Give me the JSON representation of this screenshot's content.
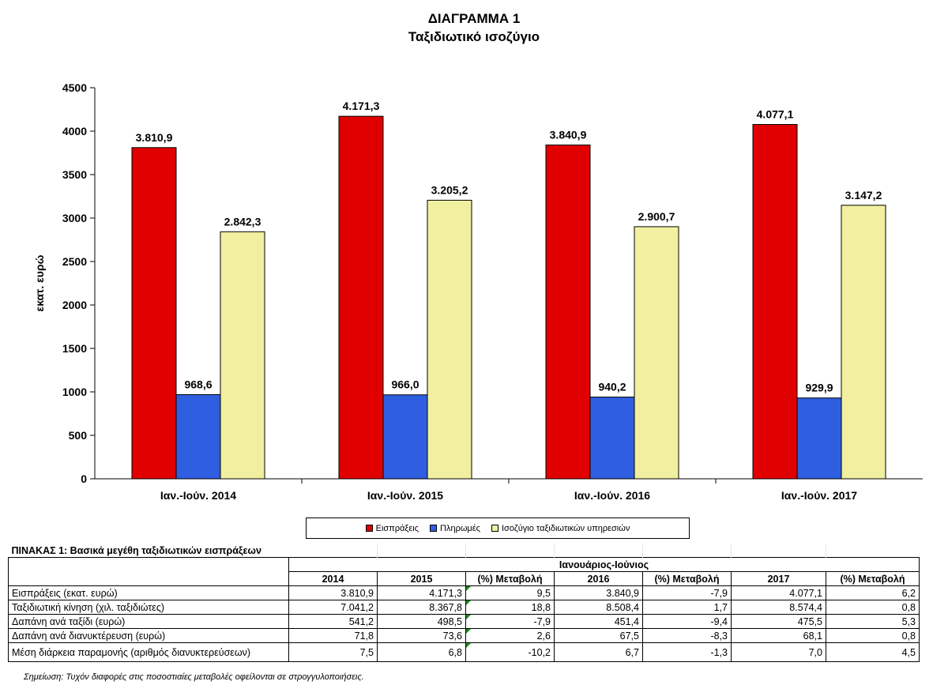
{
  "header": {
    "title": "ΔΙΑΓΡΑΜΜΑ 1",
    "subtitle": "Ταξιδιωτικό ισοζύγιο"
  },
  "chart_data": {
    "type": "bar",
    "title": "ΔΙΑΓΡΑΜΜΑ 1",
    "subtitle": "Ταξιδιωτικό ισοζύγιο",
    "xlabel": "",
    "ylabel": "εκατ. ευρώ",
    "ylim": [
      0,
      4500
    ],
    "yticks": [
      0,
      500,
      1000,
      1500,
      2000,
      2500,
      3000,
      3500,
      4000,
      4500
    ],
    "grid": false,
    "legend_position": "bottom",
    "categories": [
      "Ιαν.-Ιούν. 2014",
      "Ιαν.-Ιούν. 2015",
      "Ιαν.-Ιούν. 2016",
      "Ιαν.-Ιούν. 2017"
    ],
    "series": [
      {
        "name": "Εισπράξεις",
        "color": "#e00000",
        "values": [
          3810.9,
          4171.3,
          3840.9,
          4077.1
        ],
        "labels": [
          "3.810,9",
          "4.171,3",
          "3.840,9",
          "4.077,1"
        ]
      },
      {
        "name": "Πληρωμές",
        "color": "#2f5fe0",
        "values": [
          968.6,
          966.0,
          940.2,
          929.9
        ],
        "labels": [
          "968,6",
          "966,0",
          "940,2",
          "929,9"
        ]
      },
      {
        "name": "Ισοζύγιο ταξιδιωτικών υπηρεσιών",
        "color": "#f0f0a0",
        "values": [
          2842.3,
          3205.2,
          2900.7,
          3147.2
        ],
        "labels": [
          "2.842,3",
          "3.205,2",
          "2.900,7",
          "3.147,2"
        ]
      }
    ]
  },
  "table": {
    "caption": "ΠΙΝΑΚΑΣ 1: Βασικά μεγέθη ταξιδιωτικών εισπράξεων",
    "group_header": "Ιανουάριος-Ιούνιος",
    "columns": [
      "2014",
      "2015",
      "(%) Μεταβολή",
      "2016",
      "(%) Μεταβολή",
      "2017",
      "(%) Μεταβολή"
    ],
    "rows": [
      {
        "label": "Εισπράξεις (εκατ. ευρώ)",
        "values": [
          "3.810,9",
          "4.171,3",
          "9,5",
          "3.840,9",
          "-7,9",
          "4.077,1",
          "6,2"
        ]
      },
      {
        "label": "Ταξιδιωτική κίνηση (χιλ. ταξιδιώτες)",
        "values": [
          "7.041,2",
          "8.367,8",
          "18,8",
          "8.508,4",
          "1,7",
          "8.574,4",
          "0,8"
        ]
      },
      {
        "label": "Δαπάνη ανά ταξίδι (ευρώ)",
        "values": [
          "541,2",
          "498,5",
          "-7,9",
          "451,4",
          "-9,4",
          "475,5",
          "5,3"
        ]
      },
      {
        "label": "Δαπάνη ανά διανυκτέρευση (ευρώ)",
        "values": [
          "71,8",
          "73,6",
          "2,6",
          "67,5",
          "-8,3",
          "68,1",
          "0,8"
        ]
      },
      {
        "label": "Μέση διάρκεια παραμονής (αριθμός διανυκτερεύσεων)",
        "values": [
          "7,5",
          "6,8",
          "-10,2",
          "6,7",
          "-1,3",
          "7,0",
          "4,5"
        ]
      }
    ]
  },
  "note": "Σημείωση: Τυχόν διαφορές στις ποσοστιαίες μεταβολές οφείλονται σε στρογγυλοποιήσεις."
}
